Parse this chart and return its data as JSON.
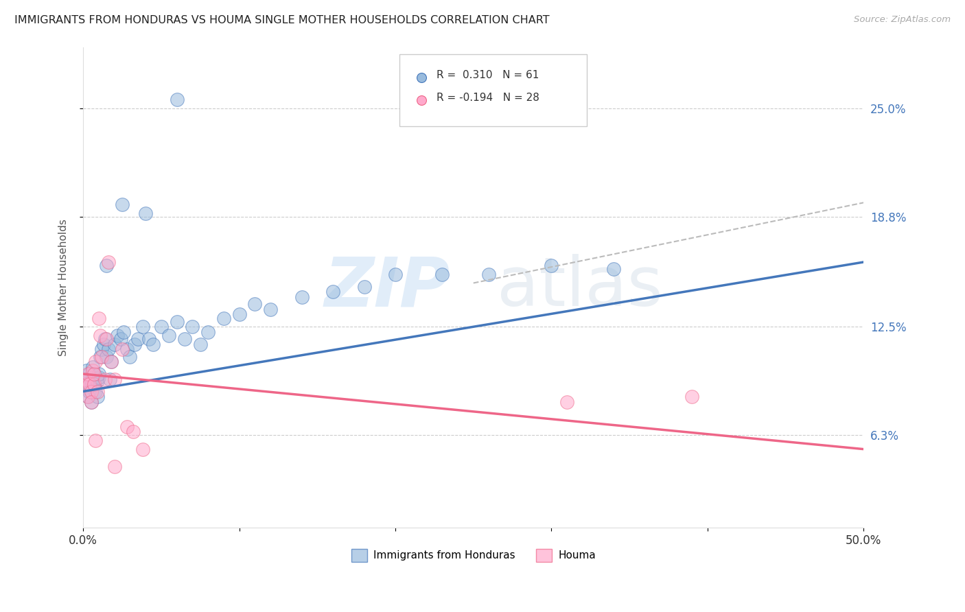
{
  "title": "IMMIGRANTS FROM HONDURAS VS HOUMA SINGLE MOTHER HOUSEHOLDS CORRELATION CHART",
  "source": "Source: ZipAtlas.com",
  "ylabel": "Single Mother Households",
  "ytick_labels": [
    "6.3%",
    "12.5%",
    "18.8%",
    "25.0%"
  ],
  "ytick_values": [
    0.063,
    0.125,
    0.188,
    0.25
  ],
  "xmin": 0.0,
  "xmax": 0.5,
  "ymin": 0.01,
  "ymax": 0.285,
  "legend_blue_label": "Immigrants from Honduras",
  "legend_pink_label": "Houma",
  "blue_color": "#99BBDD",
  "pink_color": "#FFAACC",
  "blue_line_color": "#4477BB",
  "pink_line_color": "#EE6688",
  "dashed_line_color": "#BBBBBB",
  "blue_x": [
    0.001,
    0.002,
    0.002,
    0.003,
    0.003,
    0.004,
    0.004,
    0.005,
    0.005,
    0.006,
    0.006,
    0.007,
    0.007,
    0.008,
    0.008,
    0.009,
    0.009,
    0.01,
    0.01,
    0.011,
    0.012,
    0.013,
    0.014,
    0.015,
    0.016,
    0.017,
    0.018,
    0.02,
    0.022,
    0.024,
    0.026,
    0.028,
    0.03,
    0.033,
    0.035,
    0.038,
    0.042,
    0.045,
    0.05,
    0.055,
    0.06,
    0.065,
    0.07,
    0.075,
    0.08,
    0.09,
    0.1,
    0.11,
    0.12,
    0.14,
    0.16,
    0.18,
    0.2,
    0.23,
    0.26,
    0.3,
    0.34,
    0.015,
    0.025,
    0.04,
    0.06
  ],
  "blue_y": [
    0.095,
    0.1,
    0.09,
    0.092,
    0.085,
    0.088,
    0.098,
    0.094,
    0.082,
    0.096,
    0.102,
    0.092,
    0.098,
    0.095,
    0.088,
    0.094,
    0.085,
    0.096,
    0.098,
    0.108,
    0.112,
    0.115,
    0.118,
    0.108,
    0.112,
    0.095,
    0.105,
    0.115,
    0.12,
    0.118,
    0.122,
    0.112,
    0.108,
    0.115,
    0.118,
    0.125,
    0.118,
    0.115,
    0.125,
    0.12,
    0.128,
    0.118,
    0.125,
    0.115,
    0.122,
    0.13,
    0.132,
    0.138,
    0.135,
    0.142,
    0.145,
    0.148,
    0.155,
    0.155,
    0.155,
    0.16,
    0.158,
    0.16,
    0.195,
    0.19,
    0.255
  ],
  "pink_x": [
    0.001,
    0.002,
    0.003,
    0.003,
    0.004,
    0.005,
    0.005,
    0.006,
    0.007,
    0.007,
    0.008,
    0.009,
    0.01,
    0.011,
    0.012,
    0.014,
    0.015,
    0.016,
    0.018,
    0.02,
    0.025,
    0.028,
    0.032,
    0.038,
    0.31,
    0.39,
    0.008,
    0.02
  ],
  "pink_y": [
    0.095,
    0.092,
    0.098,
    0.085,
    0.092,
    0.088,
    0.082,
    0.1,
    0.092,
    0.098,
    0.105,
    0.088,
    0.13,
    0.12,
    0.108,
    0.095,
    0.118,
    0.162,
    0.105,
    0.095,
    0.112,
    0.068,
    0.065,
    0.055,
    0.082,
    0.085,
    0.06,
    0.045
  ],
  "blue_reg": [
    0.0,
    0.5,
    0.088,
    0.162
  ],
  "pink_reg": [
    0.0,
    0.5,
    0.098,
    0.055
  ],
  "dash_reg": [
    0.25,
    0.5,
    0.15,
    0.196
  ]
}
